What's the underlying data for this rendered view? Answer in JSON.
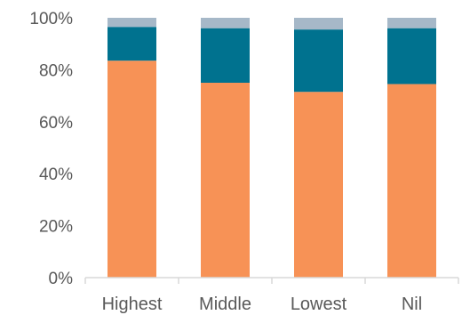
{
  "chart_data": {
    "type": "bar",
    "stacked": true,
    "normalized": true,
    "categories": [
      "Highest",
      "Middle",
      "Lowest",
      "Nil"
    ],
    "series": [
      {
        "values": [
          83.5,
          75.0,
          71.5,
          74.5
        ],
        "color": "#f79256"
      },
      {
        "values": [
          13.0,
          21.0,
          24.0,
          21.5
        ],
        "color": "#00728f"
      },
      {
        "values": [
          3.5,
          4.0,
          4.5,
          4.0
        ],
        "color": "#a6b8c8"
      }
    ],
    "yticks": [
      "0%",
      "20%",
      "40%",
      "60%",
      "80%",
      "100%"
    ],
    "ylim": [
      0,
      100
    ],
    "title": "",
    "xlabel": "",
    "ylabel": ""
  }
}
